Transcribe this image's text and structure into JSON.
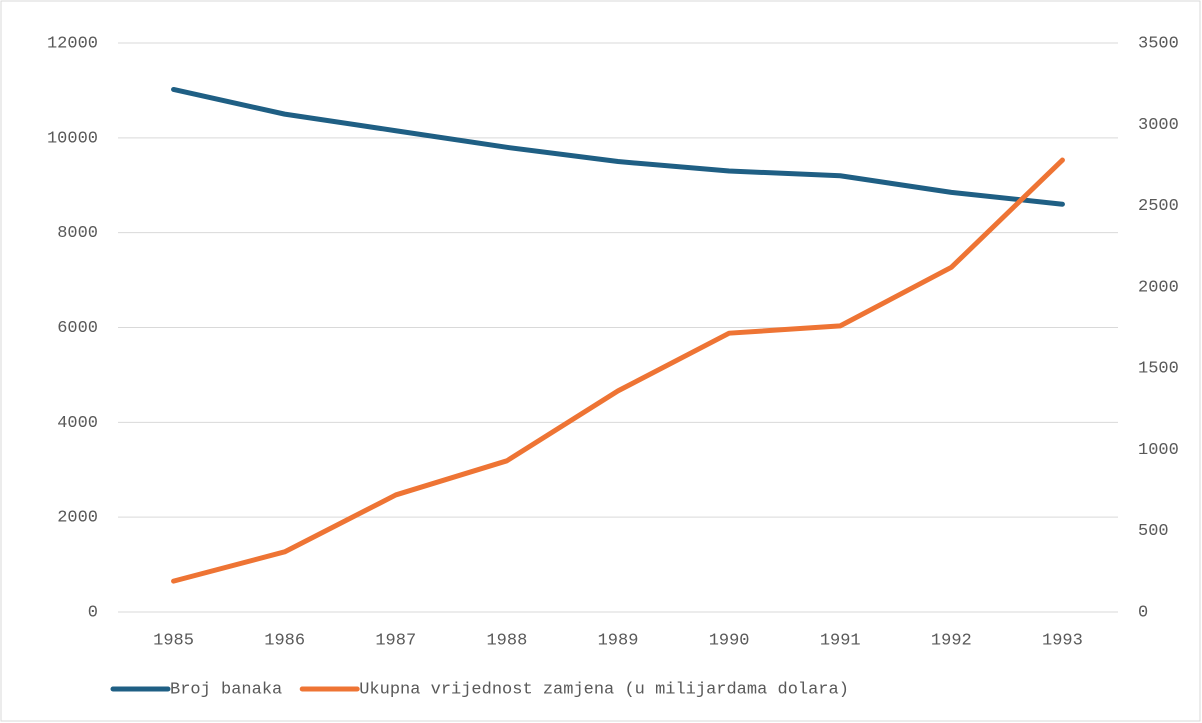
{
  "chart_data": {
    "type": "line",
    "categories": [
      "1985",
      "1986",
      "1987",
      "1988",
      "1989",
      "1990",
      "1991",
      "1992",
      "1993"
    ],
    "series": [
      {
        "name": "Broj banaka",
        "color": "#1f5f84",
        "values": [
          11020,
          10500,
          10150,
          9800,
          9500,
          9300,
          9200,
          8850,
          8600
        ]
      },
      {
        "name": "Ukupna vrijednost zamjena (u milijardama dolara)",
        "color": "#ee7434",
        "axis": "y2",
        "values": [
          190,
          370,
          720,
          930,
          1360,
          1715,
          1760,
          2120,
          2780
        ]
      }
    ],
    "ylim": [
      0,
      12000
    ],
    "yticks": [
      0,
      2000,
      4000,
      6000,
      8000,
      10000,
      12000
    ],
    "y2lim": [
      0,
      3500
    ],
    "y2ticks": [
      0,
      500,
      1000,
      1500,
      2000,
      2500,
      3000,
      3500
    ],
    "grid": true,
    "legend": "bottom"
  }
}
